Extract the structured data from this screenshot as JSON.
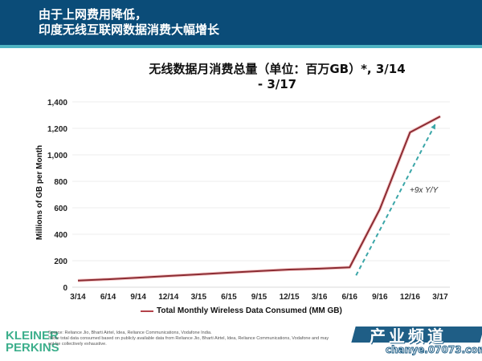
{
  "header": {
    "title": "由于上网费用降低，\n印度无线互联网数据消费大幅增长"
  },
  "chart_title": "无线数据月消费总量（单位：百万GB）*, 3/14 - 3/17",
  "chart_data": {
    "type": "line",
    "title": "无线数据月消费总量（单位：百万GB）*, 3/14 - 3/17",
    "xlabel": "",
    "ylabel": "Millions of GB per Month",
    "categories": [
      "3/14",
      "6/14",
      "9/14",
      "12/14",
      "3/15",
      "6/15",
      "9/15",
      "12/15",
      "3/16",
      "6/16",
      "9/16",
      "12/16",
      "3/17"
    ],
    "series": [
      {
        "name": "Total Monthly Wireless Data Consumed (MM GB)",
        "color": "#8b2b32",
        "values": [
          50,
          60,
          72,
          85,
          97,
          110,
          122,
          133,
          140,
          150,
          590,
          1170,
          1290
        ]
      }
    ],
    "ylim": [
      0,
      1400
    ],
    "yticks": [
      0,
      200,
      400,
      600,
      800,
      1000,
      1200,
      1400
    ],
    "ytick_labels": [
      "0",
      "200",
      "400",
      "600",
      "800",
      "1,000",
      "1,200",
      "1,400"
    ],
    "grid": true,
    "legend_position": "bottom",
    "annotations": [
      {
        "text": "+9x Y/Y",
        "type": "dashed-arrow",
        "color": "#3aa6a8",
        "from": [
          "6/16",
          150
        ],
        "to": [
          "3/17",
          1270
        ]
      }
    ]
  },
  "legend": {
    "label": "Total Monthly Wireless Data Consumed (MM GB)"
  },
  "annotation_label": "+9x Y/Y",
  "footer": {
    "logo": "KLEINER\nPERKINS",
    "source": "Source: Reliance Jio, Bharti Airtel, Idea, Reliance Communications, Vodafone India.",
    "note_line1": "*Note total data consumed based on publicly available data from Reliance Jio, Bharti Airtel, Idea, Reliance Communications, Vodafone and may",
    "note_line2": "not be collectively exhaustive."
  },
  "watermark": {
    "text": "产业频道",
    "url": "chanye.07073.com"
  },
  "colors": {
    "header_bg": "#0b4c78",
    "header_border": "#4fb3c2",
    "line": "#8b2b32",
    "line_glow": "#f0a7a7",
    "arrow": "#3aa6a8",
    "logo": "#3daf8c"
  }
}
